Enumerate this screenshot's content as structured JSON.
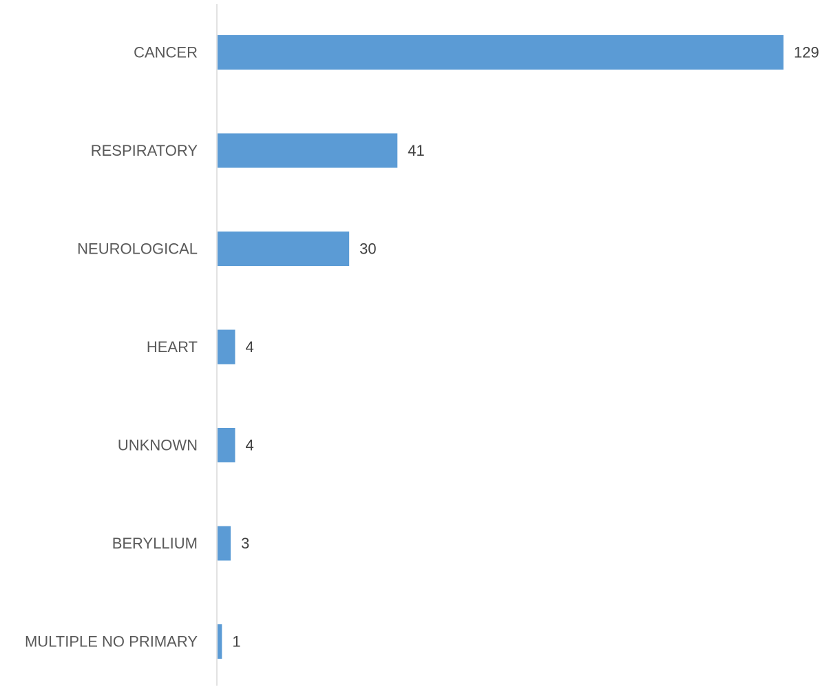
{
  "chart_data": {
    "type": "bar",
    "orientation": "horizontal",
    "title": "",
    "xlabel": "",
    "ylabel": "",
    "categories": [
      "CANCER",
      "RESPIRATORY",
      "NEUROLOGICAL",
      "HEART",
      "UNKNOWN",
      "BERYLLIUM",
      "MULTIPLE NO PRIMARY"
    ],
    "values": [
      129,
      41,
      30,
      4,
      4,
      3,
      1
    ],
    "value_labels": [
      "129",
      "41",
      "30",
      "4",
      "4",
      "3",
      "1"
    ],
    "xlim": [
      0,
      129
    ],
    "grid": false,
    "legend": "none",
    "bar_color": "#5B9BD5",
    "axis_color": "#D9D9D9"
  }
}
